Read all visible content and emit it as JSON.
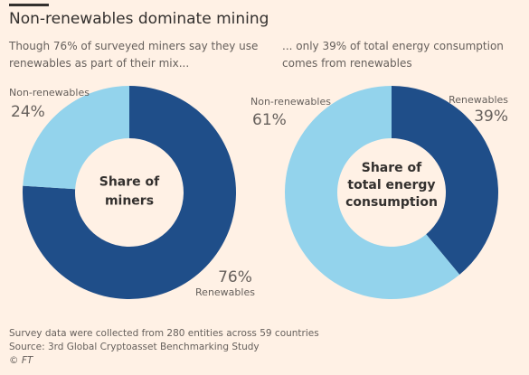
{
  "title": "Non-renewables dominate mining",
  "subtitle_left": "Though 76% of surveyed miners say they use renewables as part of their mix...",
  "subtitle_right": "... only 39% of total energy consumption comes from renewables",
  "colors": {
    "renewables": "#1f4e89",
    "non_renewables": "#93d3ec",
    "background": "#fff1e5",
    "center": "#fff1e5"
  },
  "chart_data": [
    {
      "type": "pie",
      "center_label": [
        "Share of",
        "miners"
      ],
      "slices": [
        {
          "label": "Renewables",
          "value": 76,
          "display": "76%"
        },
        {
          "label": "Non-renewables",
          "value": 24,
          "display": "24%"
        }
      ]
    },
    {
      "type": "pie",
      "center_label": [
        "Share of",
        "total energy",
        "consumption"
      ],
      "slices": [
        {
          "label": "Renewables",
          "value": 39,
          "display": "39%"
        },
        {
          "label": "Non-renewables",
          "value": 61,
          "display": "61%"
        }
      ]
    }
  ],
  "footer": {
    "note": "Survey data were collected from 280 entities across 59 countries",
    "source": "Source: 3rd Global Cryptoasset Benchmarking Study",
    "copyright": "© FT"
  }
}
